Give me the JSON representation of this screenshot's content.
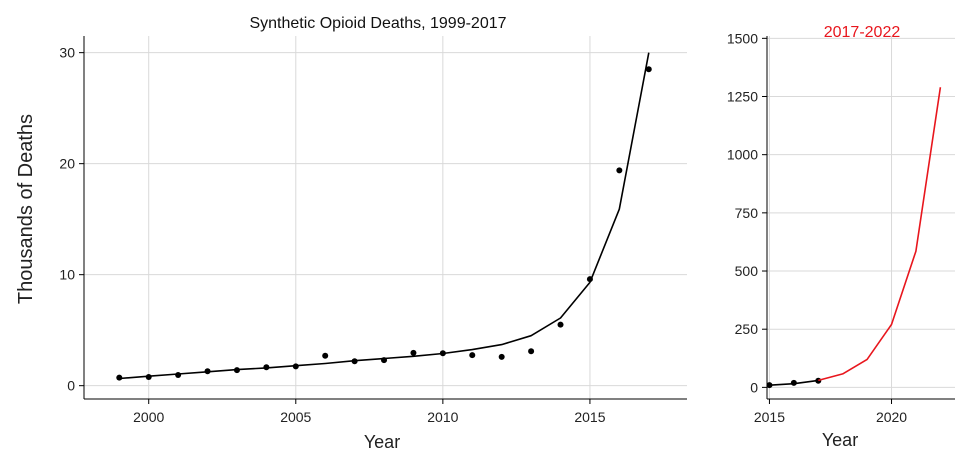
{
  "chart_data": [
    {
      "type": "scatter",
      "title": "Synthetic Opioid Deaths, 1999-2017",
      "xlabel": "Year",
      "ylabel": "Thousands of Deaths",
      "xlim": [
        1997.8,
        2018.3
      ],
      "ylim": [
        -1.2,
        31.5
      ],
      "xticks": [
        2000,
        2005,
        2010,
        2015
      ],
      "yticks": [
        0,
        10,
        20,
        30
      ],
      "grid": true,
      "title_color": "#111111",
      "series": [
        {
          "type": "scatter",
          "color": "#000000",
          "x": [
            1999,
            2000,
            2001,
            2002,
            2003,
            2004,
            2005,
            2006,
            2007,
            2008,
            2009,
            2010,
            2011,
            2012,
            2013,
            2014,
            2015,
            2016,
            2017
          ],
          "y": [
            0.73,
            0.78,
            0.96,
            1.3,
            1.4,
            1.66,
            1.74,
            2.7,
            2.2,
            2.3,
            2.95,
            2.92,
            2.75,
            2.6,
            3.1,
            5.5,
            9.6,
            19.4,
            28.5
          ]
        },
        {
          "type": "line",
          "color": "#000000",
          "x": [
            1999,
            2000,
            2001,
            2002,
            2003,
            2004,
            2005,
            2006,
            2007,
            2008,
            2009,
            2010,
            2011,
            2012,
            2013,
            2014,
            2015,
            2016,
            2017
          ],
          "y": [
            0.65,
            0.85,
            1.05,
            1.25,
            1.45,
            1.6,
            1.8,
            2.0,
            2.25,
            2.45,
            2.65,
            2.9,
            3.25,
            3.7,
            4.5,
            6.1,
            9.3,
            15.9,
            30.0
          ]
        }
      ]
    },
    {
      "type": "line",
      "title": "2017-2022",
      "xlabel": "Year",
      "ylabel": "",
      "xlim": [
        2014.9,
        2022.6
      ],
      "ylim": [
        -50,
        1510
      ],
      "xticks": [
        2015,
        2020
      ],
      "yticks": [
        0,
        250,
        500,
        750,
        1000,
        1250,
        1500
      ],
      "grid": true,
      "title_color": "#e8161d",
      "series": [
        {
          "type": "scatter",
          "color": "#000000",
          "x": [
            2015,
            2016,
            2017
          ],
          "y": [
            9.6,
            19.4,
            28.5
          ]
        },
        {
          "type": "line",
          "color": "#000000",
          "x": [
            2015,
            2016,
            2017
          ],
          "y": [
            9.3,
            15.9,
            30.0
          ]
        },
        {
          "type": "line",
          "color": "#e8161d",
          "x": [
            2017,
            2018,
            2019,
            2020,
            2021,
            2022
          ],
          "y": [
            30,
            58,
            120,
            270,
            585,
            1290
          ]
        }
      ]
    }
  ]
}
